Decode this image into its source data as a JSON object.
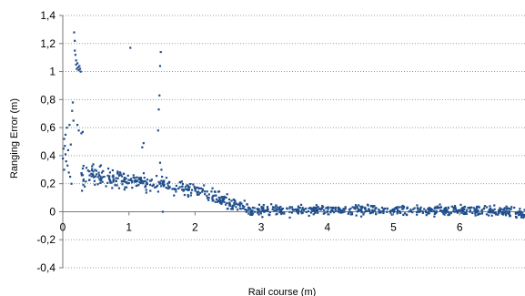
{
  "chart_data": {
    "type": "scatter",
    "title": "",
    "xlabel": "Rail course (m)",
    "ylabel": "Ranging Error (m)",
    "xlim": [
      0,
      7
    ],
    "ylim": [
      -0.4,
      1.4
    ],
    "grid": "horizontal dotted",
    "x_ticks": [
      {
        "value": 0,
        "label": "0"
      },
      {
        "value": 1,
        "label": "1"
      },
      {
        "value": 2,
        "label": "2"
      },
      {
        "value": 3,
        "label": "3"
      },
      {
        "value": 4,
        "label": "4"
      },
      {
        "value": 5,
        "label": "5"
      },
      {
        "value": 6,
        "label": "6"
      }
    ],
    "y_ticks": [
      {
        "value": 1.4,
        "label": "1,4"
      },
      {
        "value": 1.2,
        "label": "1,2"
      },
      {
        "value": 1.0,
        "label": "1"
      },
      {
        "value": 0.8,
        "label": "0,8"
      },
      {
        "value": 0.6,
        "label": "0,6"
      },
      {
        "value": 0.4,
        "label": "0,4"
      },
      {
        "value": 0.2,
        "label": "0,2"
      },
      {
        "value": 0.0,
        "label": "0"
      },
      {
        "value": -0.2,
        "label": "-0,2"
      },
      {
        "value": -0.4,
        "label": "-0,4"
      }
    ],
    "marker_color": "#1f4e8c",
    "series": [
      {
        "points": [
          [
            0.0,
            0.38
          ],
          [
            0.01,
            0.45
          ],
          [
            0.02,
            0.52
          ],
          [
            0.02,
            0.3
          ],
          [
            0.03,
            0.47
          ],
          [
            0.04,
            0.41
          ],
          [
            0.04,
            0.55
          ],
          [
            0.05,
            0.36
          ],
          [
            0.06,
            0.6
          ],
          [
            0.07,
            0.33
          ],
          [
            0.08,
            0.44
          ],
          [
            0.09,
            0.28
          ],
          [
            0.1,
            0.62
          ],
          [
            0.11,
            0.25
          ],
          [
            0.12,
            0.48
          ],
          [
            0.13,
            0.2
          ],
          [
            0.14,
            0.72
          ],
          [
            0.15,
            0.78
          ],
          [
            0.16,
            0.65
          ],
          [
            0.17,
            1.28
          ],
          [
            0.18,
            1.22
          ],
          [
            0.18,
            1.15
          ],
          [
            0.19,
            1.12
          ],
          [
            0.2,
            1.05
          ],
          [
            0.2,
            1.08
          ],
          [
            0.21,
            1.02
          ],
          [
            0.22,
            1.06
          ],
          [
            0.23,
            1.03
          ],
          [
            0.24,
            1.01
          ],
          [
            0.25,
            1.04
          ],
          [
            0.26,
            1.02
          ],
          [
            0.27,
            1.0
          ],
          [
            0.22,
            0.62
          ],
          [
            0.24,
            0.58
          ],
          [
            0.28,
            0.56
          ],
          [
            0.3,
            0.57
          ],
          [
            0.29,
            0.15
          ],
          [
            0.31,
            0.22
          ],
          [
            0.33,
            0.18
          ],
          [
            1.02,
            1.17
          ],
          [
            1.48,
            1.14
          ],
          [
            1.47,
            1.04
          ],
          [
            1.46,
            0.83
          ],
          [
            1.45,
            0.73
          ],
          [
            1.44,
            0.58
          ],
          [
            1.22,
            0.49
          ],
          [
            1.2,
            0.46
          ],
          [
            1.49,
            0.3
          ],
          [
            1.5,
            0.25
          ],
          [
            1.47,
            0.35
          ],
          [
            1.51,
            0.0
          ]
        ]
      }
    ]
  }
}
